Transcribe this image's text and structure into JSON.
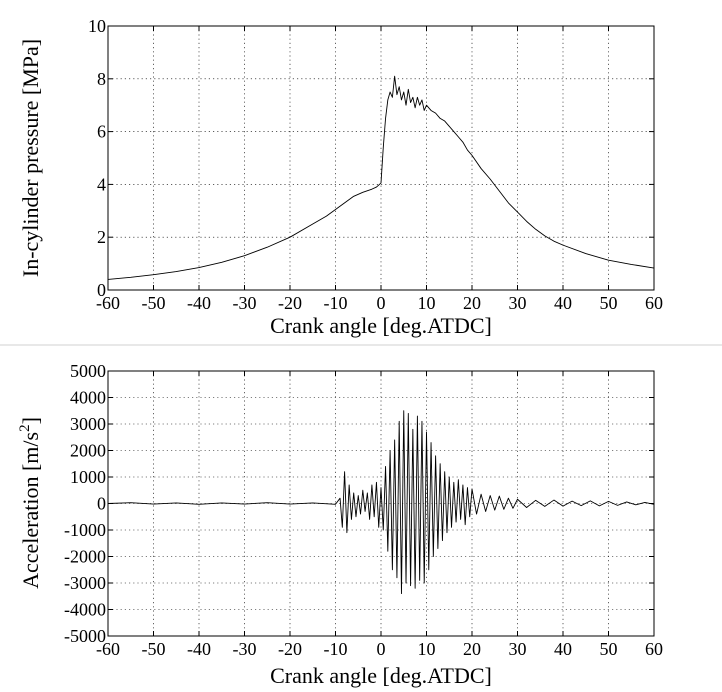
{
  "chart_data": [
    {
      "type": "line",
      "xlabel": "Crank angle [deg.ATDC]",
      "ylabel": "In-cylinder pressure [MPa]",
      "xlim": [
        -60,
        60
      ],
      "ylim": [
        0,
        10
      ],
      "xticks": [
        -60,
        -50,
        -40,
        -30,
        -20,
        -10,
        0,
        10,
        20,
        30,
        40,
        50,
        60
      ],
      "yticks": [
        0,
        2,
        4,
        6,
        8,
        10
      ],
      "grid": true,
      "series": [
        {
          "color": "#000000",
          "x": [
            -60,
            -55,
            -50,
            -45,
            -40,
            -35,
            -30,
            -25,
            -20,
            -15,
            -12,
            -10,
            -8,
            -6,
            -4,
            -2,
            -1,
            0,
            0.5,
            1,
            1.5,
            2,
            2.5,
            3,
            3.5,
            4,
            4.5,
            5,
            5.5,
            6,
            6.5,
            7,
            7.5,
            8,
            8.5,
            9,
            9.5,
            10,
            11,
            12,
            13,
            14,
            15,
            16,
            17,
            18,
            19,
            20,
            22,
            24,
            26,
            28,
            30,
            32,
            34,
            36,
            38,
            40,
            45,
            50,
            55,
            60
          ],
          "y": [
            0.4,
            0.48,
            0.58,
            0.7,
            0.85,
            1.05,
            1.3,
            1.62,
            2.0,
            2.5,
            2.8,
            3.05,
            3.3,
            3.55,
            3.7,
            3.82,
            3.9,
            4.05,
            5.4,
            6.5,
            7.2,
            7.5,
            7.3,
            8.1,
            7.4,
            7.7,
            7.2,
            7.5,
            7.0,
            7.6,
            7.1,
            7.3,
            6.9,
            7.3,
            7.0,
            7.2,
            6.8,
            7.0,
            6.8,
            6.7,
            6.5,
            6.4,
            6.2,
            6.0,
            5.8,
            5.6,
            5.3,
            5.1,
            4.6,
            4.2,
            3.75,
            3.3,
            2.95,
            2.6,
            2.3,
            2.05,
            1.85,
            1.7,
            1.38,
            1.13,
            0.97,
            0.83
          ]
        }
      ]
    },
    {
      "type": "line",
      "xlabel": "Crank angle [deg.ATDC]",
      "ylabel": "Acceleration [m/s2]",
      "xlim": [
        -60,
        60
      ],
      "ylim": [
        -5000,
        5000
      ],
      "xticks": [
        -60,
        -50,
        -40,
        -30,
        -20,
        -10,
        0,
        10,
        20,
        30,
        40,
        50,
        60
      ],
      "yticks": [
        -5000,
        -4000,
        -3000,
        -2000,
        -1000,
        0,
        1000,
        2000,
        3000,
        4000,
        5000
      ],
      "grid": true,
      "series": [
        {
          "color": "#000000",
          "x": [
            -60,
            -55,
            -50,
            -45,
            -40,
            -35,
            -30,
            -25,
            -20,
            -15,
            -10,
            -9,
            -8.5,
            -8,
            -7.5,
            -7,
            -6.5,
            -6,
            -5.5,
            -5,
            -4.5,
            -4,
            -3.5,
            -3,
            -2.5,
            -2,
            -1.5,
            -1,
            -0.5,
            0,
            0.5,
            1,
            1.5,
            2,
            2.5,
            3,
            3.5,
            4,
            4.5,
            5,
            5.5,
            6,
            6.5,
            7,
            7.5,
            8,
            8.5,
            9,
            9.5,
            10,
            10.5,
            11,
            11.5,
            12,
            12.5,
            13,
            13.5,
            14,
            14.5,
            15,
            15.5,
            16,
            16.5,
            17,
            17.5,
            18,
            18.5,
            19,
            19.5,
            20,
            21,
            22,
            23,
            24,
            25,
            26,
            27,
            28,
            29,
            30,
            32,
            34,
            36,
            38,
            40,
            42,
            44,
            46,
            48,
            50,
            52,
            54,
            56,
            58,
            60
          ],
          "y": [
            0,
            30,
            -20,
            20,
            -30,
            20,
            -20,
            30,
            -20,
            20,
            -30,
            200,
            -900,
            1200,
            -1100,
            700,
            -600,
            400,
            -500,
            300,
            -400,
            500,
            -300,
            400,
            -600,
            700,
            -500,
            800,
            -900,
            600,
            -1000,
            1400,
            -1800,
            2000,
            -2500,
            2400,
            -2800,
            3100,
            -3400,
            3500,
            -3000,
            3400,
            -3100,
            2800,
            -3200,
            3300,
            -2900,
            3100,
            -3000,
            2700,
            -2500,
            2300,
            -2000,
            1800,
            -1700,
            1500,
            -1400,
            1200,
            -1100,
            1000,
            -900,
            800,
            -700,
            900,
            -600,
            700,
            -800,
            600,
            -500,
            550,
            -400,
            350,
            -300,
            300,
            -250,
            280,
            -220,
            200,
            -180,
            160,
            -150,
            120,
            -110,
            130,
            -100,
            90,
            -80,
            100,
            -90,
            80,
            -70,
            60,
            -50,
            40,
            -30
          ]
        }
      ]
    }
  ]
}
